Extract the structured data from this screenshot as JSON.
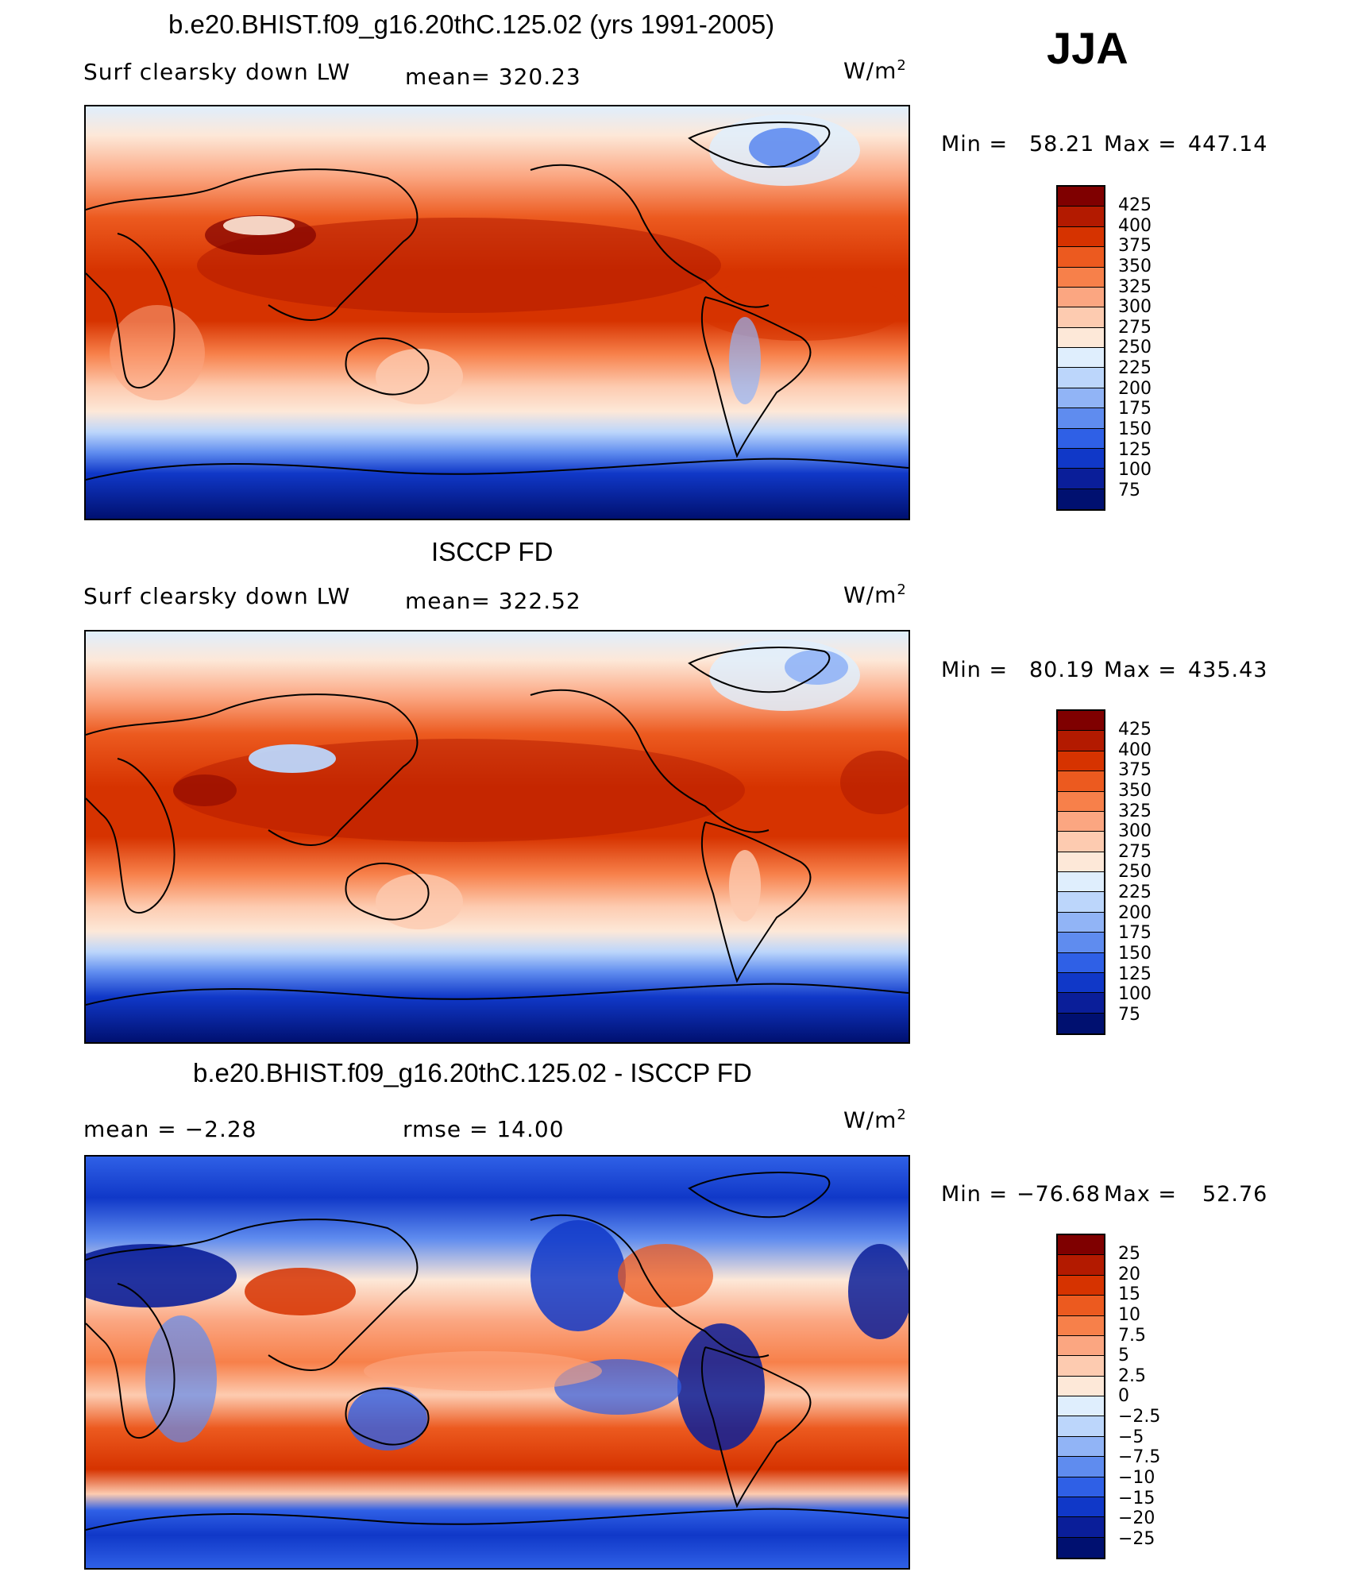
{
  "season": "JJA",
  "panels": [
    {
      "title": "b.e20.BHIST.f09_g16.20thC.125.02 (yrs 1991-2005)",
      "left_label": "Surf clearsky down LW",
      "mid_label": "mean= 320.23",
      "units": "W/m",
      "units_sup": "2",
      "min_label": "Min =",
      "min_value": "58.21",
      "max_label": "Max =",
      "max_value": "447.14",
      "colorbar_ticks": [
        "425",
        "400",
        "375",
        "350",
        "325",
        "300",
        "275",
        "250",
        "225",
        "200",
        "175",
        "150",
        "125",
        "100",
        "75"
      ]
    },
    {
      "title": "ISCCP FD",
      "left_label": "Surf clearsky down LW",
      "mid_label": "mean= 322.52",
      "units": "W/m",
      "units_sup": "2",
      "min_label": "Min =",
      "min_value": "80.19",
      "max_label": "Max =",
      "max_value": "435.43",
      "colorbar_ticks": [
        "425",
        "400",
        "375",
        "350",
        "325",
        "300",
        "275",
        "250",
        "225",
        "200",
        "175",
        "150",
        "125",
        "100",
        "75"
      ]
    },
    {
      "title": "b.e20.BHIST.f09_g16.20thC.125.02 - ISCCP FD",
      "left_label": "mean = −2.28",
      "mid_label": "rmse = 14.00",
      "units": "W/m",
      "units_sup": "2",
      "min_label": "Min =",
      "min_value": "−76.68",
      "max_label": "Max =",
      "max_value": "52.76",
      "colorbar_ticks": [
        "25",
        "20",
        "15",
        "10",
        "7.5",
        "5",
        "2.5",
        "0",
        "−2.5",
        "−5",
        "−7.5",
        "−10",
        "−15",
        "−20",
        "−25"
      ]
    }
  ],
  "colors": {
    "palette": [
      "#7f0000",
      "#b31a00",
      "#d63300",
      "#ec5a1f",
      "#f7804a",
      "#fba681",
      "#fdcbb0",
      "#fde8d8",
      "#dfeefd",
      "#bcd6fb",
      "#91b4f6",
      "#5f8cef",
      "#2f60e6",
      "#1038c8",
      "#0a1e99",
      "#001070"
    ]
  }
}
